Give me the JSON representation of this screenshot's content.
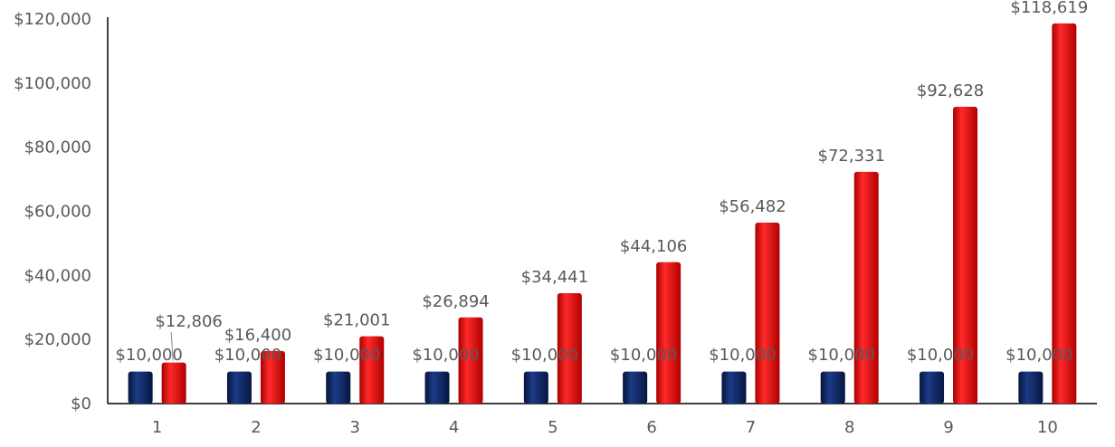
{
  "chart_data": {
    "type": "bar",
    "categories": [
      "1",
      "2",
      "3",
      "4",
      "5",
      "6",
      "7",
      "8",
      "9",
      "10"
    ],
    "series": [
      {
        "color": "#0d2a6b",
        "values": [
          10000,
          10000,
          10000,
          10000,
          10000,
          10000,
          10000,
          10000,
          10000,
          10000
        ],
        "labels": [
          "$10,000",
          "$10,000",
          "$10,000",
          "$10,000",
          "$10,000",
          "$10,000",
          "$10,000",
          "$10,000",
          "$10,000",
          "$10,000"
        ]
      },
      {
        "color": "#e01010",
        "values": [
          12806,
          16400,
          21001,
          26894,
          34441,
          44106,
          56482,
          72331,
          92628,
          118619
        ],
        "labels": [
          "$12,806",
          "$16,400",
          "$21,001",
          "$26,894",
          "$34,441",
          "$44,106",
          "$56,482",
          "$72,331",
          "$92,628",
          "$118,619"
        ]
      }
    ],
    "y_ticks": [
      "$0",
      "$20,000",
      "$40,000",
      "$60,000",
      "$80,000",
      "$100,000",
      "$120,000"
    ],
    "ylim": [
      0,
      120000
    ],
    "grid": false,
    "legend": "none",
    "title": "",
    "xlabel": "",
    "ylabel": ""
  }
}
